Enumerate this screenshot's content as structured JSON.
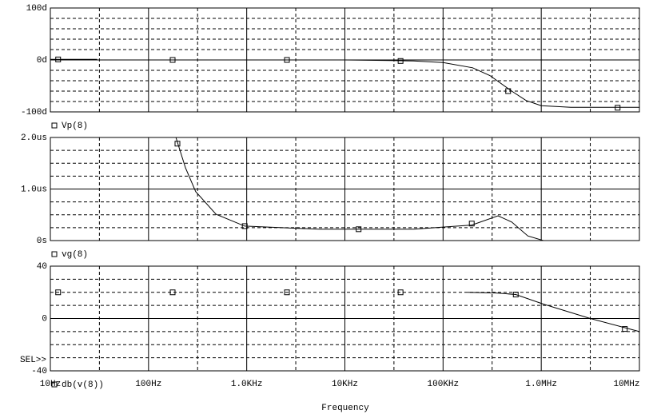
{
  "chart_data": [
    {
      "type": "line",
      "ylim": [
        -100,
        100
      ],
      "yticks": [
        {
          "value": 100,
          "label": "100d"
        },
        {
          "value": 0,
          "label": "0d"
        },
        {
          "value": -100,
          "label": "-100d"
        }
      ],
      "minor_yticks": [
        80,
        60,
        40,
        20,
        -20,
        -40,
        -60,
        -80
      ],
      "grid": true,
      "series": [
        {
          "name": "Vp(8)",
          "color": "#000000",
          "x": [
            10,
            20,
            30,
            100,
            10000,
            30000,
            50000,
            100000,
            200000,
            300000,
            500000,
            700000,
            1000000,
            2000000,
            5000000,
            10000000
          ],
          "values": [
            1,
            1,
            1,
            null,
            0,
            -1,
            -2,
            -5,
            -15,
            -30,
            -60,
            -78,
            -88,
            -91,
            -91,
            -91
          ],
          "marker_x": [
            12,
            176,
            2570,
            36900,
            460000,
            6000000
          ],
          "marker_values": [
            1,
            0,
            0,
            -2,
            -60,
            -92
          ]
        }
      ]
    },
    {
      "type": "line",
      "ylim": [
        0,
        2
      ],
      "yticks": [
        {
          "value": 2,
          "label": "2.0us"
        },
        {
          "value": 1,
          "label": "1.0us"
        },
        {
          "value": 0,
          "label": "0s"
        }
      ],
      "minor_yticks": [
        1.75,
        1.5,
        1.25,
        0.75,
        0.5,
        0.25
      ],
      "grid": true,
      "series": [
        {
          "name": "vg(8)",
          "color": "#000000",
          "x": [
            190,
            238,
            302,
            487,
            955,
            5500,
            50000,
            196000,
            363000,
            500000,
            730000,
            1050000,
            1300000
          ],
          "values": [
            2.0,
            1.41,
            0.95,
            0.51,
            0.28,
            0.22,
            0.22,
            0.3,
            0.48,
            0.36,
            0.09,
            0.0,
            0.0
          ],
          "marker_x": [
            197,
            955,
            13800,
            196000
          ],
          "marker_values": [
            1.88,
            0.28,
            0.22,
            0.33
          ]
        }
      ]
    },
    {
      "type": "line",
      "ylim": [
        -40,
        40
      ],
      "yticks": [
        40,
        0,
        -40
      ],
      "minor_yticks": [
        30,
        20,
        10,
        -10,
        -20,
        -30
      ],
      "grid": true,
      "log_x": true,
      "xlim": [
        10,
        10000000
      ],
      "xticks": [
        {
          "value": 10,
          "label": "10Hz"
        },
        {
          "value": 100,
          "label": "100Hz"
        },
        {
          "value": 1000,
          "label": "1.0KHz"
        },
        {
          "value": 10000,
          "label": "10KHz"
        },
        {
          "value": 100000,
          "label": "100KHz"
        },
        {
          "value": 1000000,
          "label": "1.0MHz"
        },
        {
          "value": 10000000,
          "label": "10MHz"
        }
      ],
      "minor_xticks": [
        31.6,
        316,
        3160,
        31600,
        316000,
        3160000
      ],
      "xlabel": "Frequency",
      "annotation": "SEL>>",
      "series": [
        {
          "name": "db(v(8))",
          "color": "#000000",
          "x": [
            178000,
            350000,
            550000,
            1050000,
            3160000,
            10000000
          ],
          "values": [
            20,
            19.5,
            18.3,
            11,
            0,
            -10
          ],
          "marker_x": [
            12,
            176,
            2570,
            36900,
            550000,
            7100000
          ],
          "marker_values": [
            20,
            20,
            20,
            20,
            18.3,
            -8
          ]
        }
      ]
    }
  ]
}
